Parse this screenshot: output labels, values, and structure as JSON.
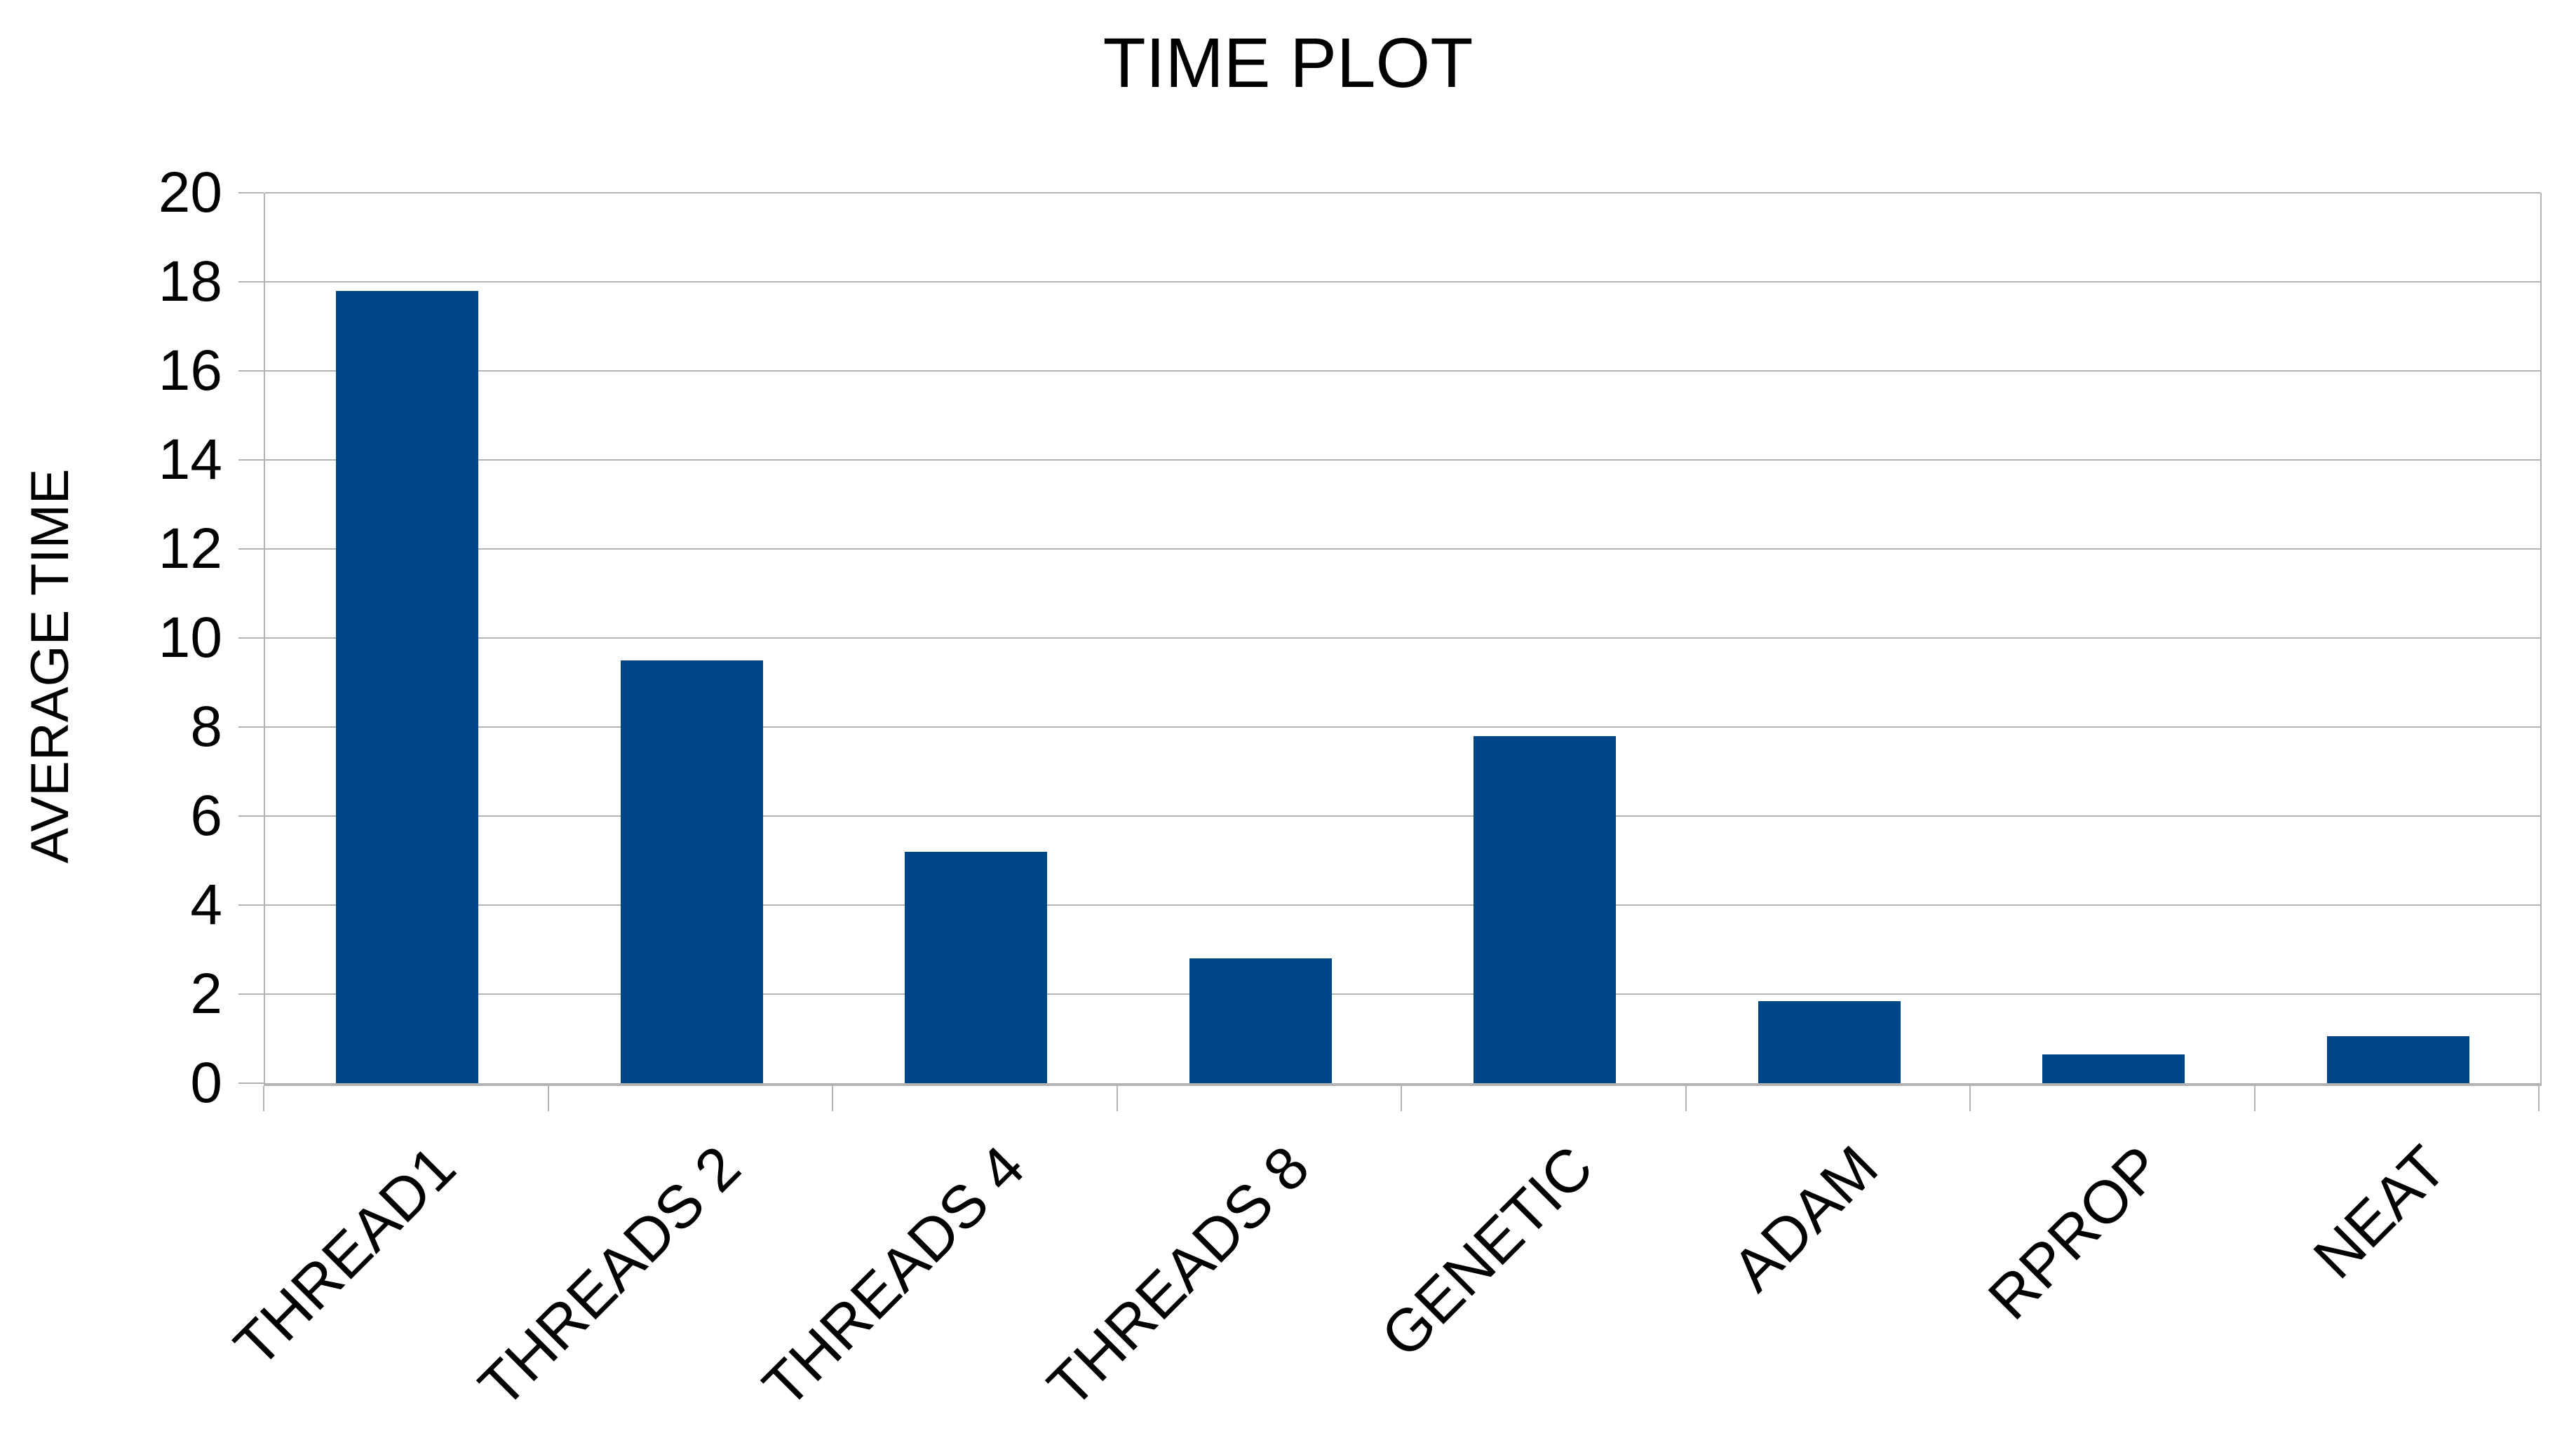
{
  "title": "TIME PLOT",
  "y_axis": {
    "label": "AVERAGE TIME",
    "tick_labels": [
      "0",
      "2",
      "4",
      "6",
      "8",
      "10",
      "12",
      "14",
      "16",
      "18",
      "20"
    ]
  },
  "chart_data": {
    "type": "bar",
    "title": "TIME PLOT",
    "categories": [
      "THREAD1",
      "THREADS 2",
      "THREADS 4",
      "THREADS 8",
      "GENETIC",
      "ADAM",
      "RPROP",
      "NEAT"
    ],
    "values": [
      17.8,
      9.5,
      5.2,
      2.8,
      7.8,
      1.85,
      0.65,
      1.05
    ],
    "xlabel": "",
    "ylabel": "AVERAGE TIME",
    "ylim": [
      0,
      20
    ],
    "ytick_step": 2,
    "grid": "horizontal",
    "legend": "none",
    "x_labels_rotation_deg": 45,
    "colors": {
      "bar": "#004586",
      "gridline": "#b3b3b3",
      "axis": "#b3b3b3",
      "text": "#000000",
      "background": "#ffffff"
    }
  }
}
